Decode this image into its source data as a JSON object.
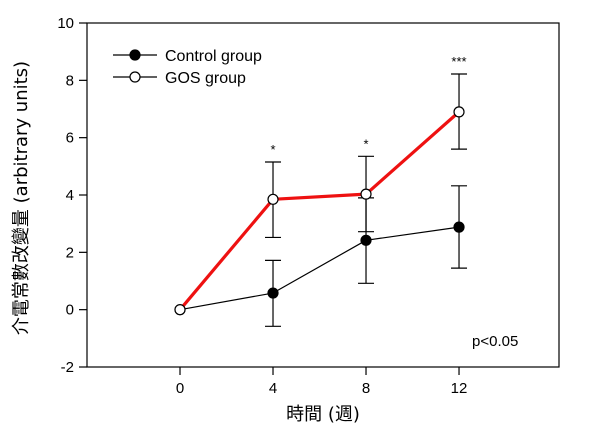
{
  "chart_data": {
    "type": "line",
    "xlabel": "時間 (週)",
    "ylabel": "介電常數改變量 (arbitrary units)",
    "xlim": [
      -4,
      16.3
    ],
    "ylim": [
      -2,
      10
    ],
    "xticks": [
      0,
      4,
      8,
      12
    ],
    "yticks": [
      -2,
      0,
      2,
      4,
      6,
      8,
      10
    ],
    "grid": false,
    "legend_position": "top-left",
    "annotation": "p<0.05",
    "significance": [
      {
        "x": 4,
        "label": "*"
      },
      {
        "x": 8,
        "label": "*"
      },
      {
        "x": 12,
        "label": "***"
      }
    ],
    "series": [
      {
        "name": "Control group",
        "marker": "filled-circle",
        "line_color": "#000000",
        "x": [
          0,
          4,
          8,
          12
        ],
        "y": [
          0.0,
          0.58,
          2.42,
          2.88
        ],
        "err_low": [
          0.0,
          -0.58,
          0.92,
          1.45
        ],
        "err_high": [
          0.0,
          1.72,
          3.9,
          4.32
        ]
      },
      {
        "name": "GOS group",
        "marker": "open-circle",
        "line_color": "#ee1111",
        "x": [
          0,
          4,
          8,
          12
        ],
        "y": [
          0.0,
          3.85,
          4.03,
          6.9
        ],
        "err_low": [
          0.0,
          2.52,
          2.72,
          5.6
        ],
        "err_high": [
          0.0,
          5.15,
          5.35,
          8.22
        ]
      }
    ]
  }
}
